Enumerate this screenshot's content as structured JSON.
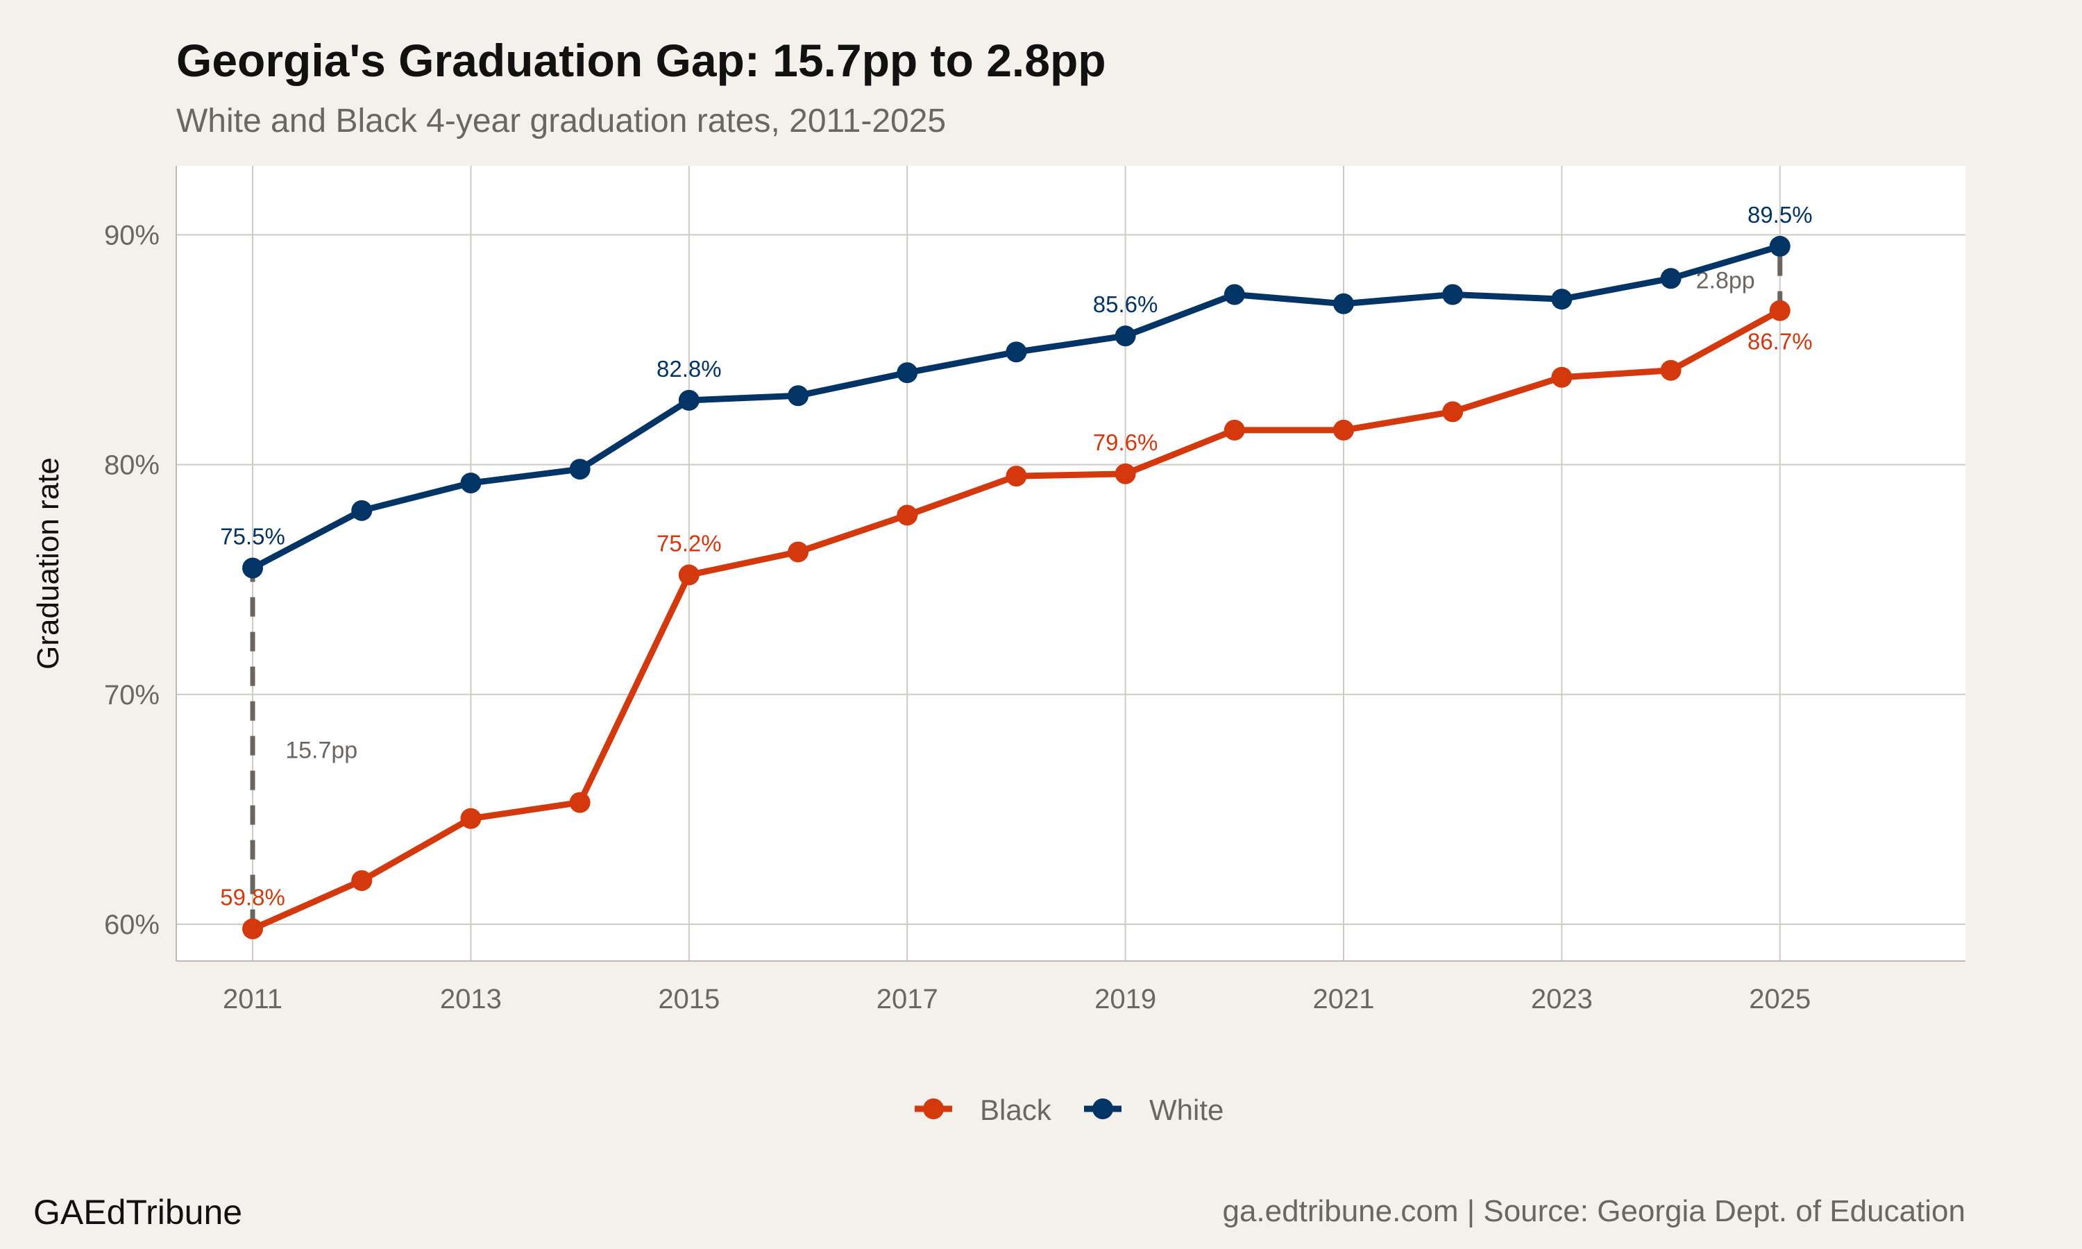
{
  "chart_data": {
    "type": "line",
    "title": "Georgia's Graduation Gap: 15.7pp to 2.8pp",
    "subtitle": "White and Black 4-year graduation rates, 2011-2025",
    "xlabel": "",
    "ylabel": "Graduation rate",
    "x": [
      2011,
      2012,
      2013,
      2014,
      2015,
      2016,
      2017,
      2018,
      2019,
      2020,
      2021,
      2022,
      2023,
      2024,
      2025
    ],
    "xlim": [
      2010.3,
      2026.7
    ],
    "ylim": [
      58.4,
      93.0
    ],
    "x_ticks": [
      "2011",
      "2013",
      "2015",
      "2017",
      "2019",
      "2021",
      "2023",
      "2025"
    ],
    "y_ticks": [
      {
        "value": 60,
        "label": "60%"
      },
      {
        "value": 70,
        "label": "70%"
      },
      {
        "value": 80,
        "label": "80%"
      },
      {
        "value": 90,
        "label": "90%"
      }
    ],
    "grid": true,
    "legend_position": "bottom",
    "series": [
      {
        "name": "Black",
        "color": "#D4380D",
        "values": [
          59.8,
          61.9,
          64.6,
          65.3,
          75.2,
          76.2,
          77.8,
          79.5,
          79.6,
          81.5,
          81.5,
          82.3,
          83.8,
          84.1,
          86.7
        ],
        "labels": [
          {
            "year": 2011,
            "text": "59.8%",
            "pos": "above"
          },
          {
            "year": 2015,
            "text": "75.2%",
            "pos": "above"
          },
          {
            "year": 2019,
            "text": "79.6%",
            "pos": "above"
          },
          {
            "year": 2025,
            "text": "86.7%",
            "pos": "below"
          }
        ]
      },
      {
        "name": "White",
        "color": "#033466",
        "values": [
          75.5,
          78.0,
          79.2,
          79.8,
          82.8,
          83.0,
          84.0,
          84.9,
          85.6,
          87.4,
          87.0,
          87.4,
          87.2,
          88.1,
          89.5
        ],
        "labels": [
          {
            "year": 2011,
            "text": "75.5%",
            "pos": "above"
          },
          {
            "year": 2015,
            "text": "82.8%",
            "pos": "above"
          },
          {
            "year": 2019,
            "text": "85.6%",
            "pos": "above"
          },
          {
            "year": 2025,
            "text": "89.5%",
            "pos": "above"
          }
        ]
      }
    ],
    "annotations": [
      {
        "year": 2011,
        "from": 59.8,
        "to": 75.5,
        "text": "15.7pp"
      },
      {
        "year": 2025,
        "from": 86.7,
        "to": 89.5,
        "text": "2.8pp"
      }
    ],
    "annotation_color": "#6B6661"
  },
  "footer": {
    "brand": "GAEdTribune",
    "source": "ga.edtribune.com | Source: Georgia Dept. of Education"
  }
}
